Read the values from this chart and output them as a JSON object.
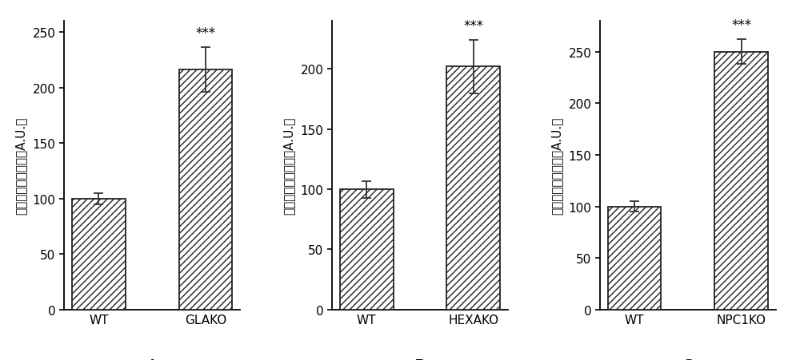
{
  "panels": [
    {
      "label": "A",
      "categories": [
        "WT",
        "GLAKO"
      ],
      "values": [
        100,
        216
      ],
      "errors": [
        5,
        20
      ],
      "sig": [
        false,
        true
      ],
      "ylim": [
        0,
        260
      ],
      "yticks": [
        0,
        50,
        100,
        150,
        200,
        250
      ],
      "ylabel": "溶酶体胆固醇总量（A.U.）"
    },
    {
      "label": "B",
      "categories": [
        "WT",
        "HEXAKO"
      ],
      "values": [
        100,
        202
      ],
      "errors": [
        7,
        22
      ],
      "sig": [
        false,
        true
      ],
      "ylim": [
        0,
        240
      ],
      "yticks": [
        0,
        50,
        100,
        150,
        200
      ],
      "ylabel": "溶酶体胆固醇总量（A.U.）"
    },
    {
      "label": "C",
      "categories": [
        "WT",
        "NPC1KO"
      ],
      "values": [
        100,
        250
      ],
      "errors": [
        5,
        12
      ],
      "sig": [
        false,
        true
      ],
      "ylim": [
        0,
        280
      ],
      "yticks": [
        0,
        50,
        100,
        150,
        200,
        250
      ],
      "ylabel": "溶酶体胆固醇总量（A.U.）"
    }
  ],
  "hatch_pattern": "////",
  "bar_color": "white",
  "bar_edge_color": "#222222",
  "sig_text": "***",
  "sig_fontsize": 12,
  "tick_fontsize": 11,
  "ylabel_fontsize": 11,
  "label_fontsize": 16,
  "background_color": "white",
  "bar_width": 0.5,
  "capsize": 4,
  "error_color": "#333333"
}
